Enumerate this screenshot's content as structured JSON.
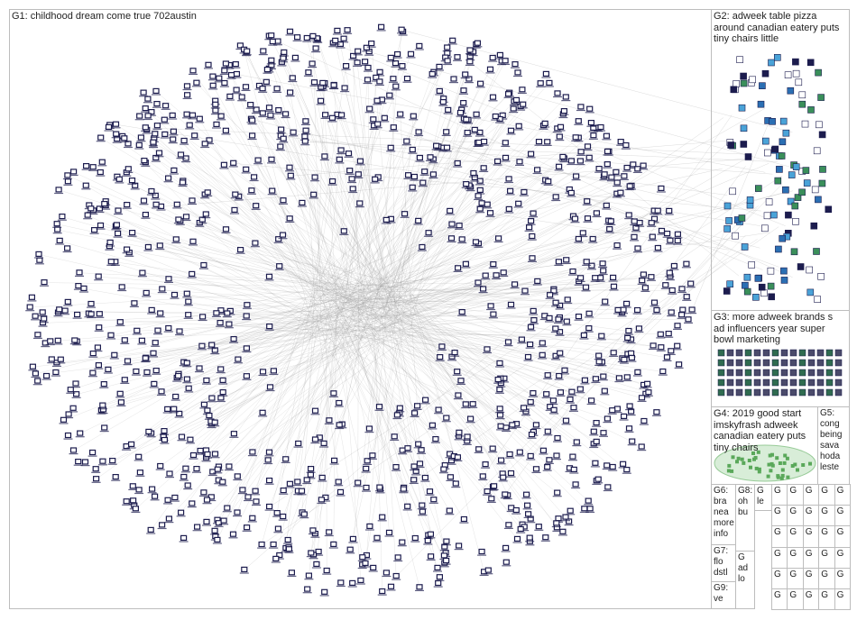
{
  "groups": [
    {
      "id": "G1",
      "label": "G1: childhood dream come true 702austin"
    },
    {
      "id": "G2",
      "label": "G2: adweek table pizza\naround canadian eatery puts\ntiny chairs little"
    },
    {
      "id": "G3",
      "label": "G3: more adweek brands s\nad influencers year super\nbowl marketing"
    },
    {
      "id": "G4",
      "label": "G4: 2019 good start\nimskyfrash adweek\ncanadian eatery puts\ntiny chairs"
    },
    {
      "id": "G5",
      "label": "G5:\ncong\nbeing\nsava\nhoda\nleste"
    },
    {
      "id": "G6",
      "label": "G6:\nbra\nnea\nmore\ninfo"
    },
    {
      "id": "G7",
      "label": "G7:\nflo\ndstl"
    },
    {
      "id": "G8",
      "label": "G8:\noh\nbu"
    },
    {
      "id": "G9",
      "label": "G9:\nve"
    },
    {
      "id": "G10",
      "label": "G\nle"
    },
    {
      "id": "G11",
      "label": "G\nad\nlo"
    }
  ],
  "colors": {
    "node_fill": "#1c1c4e",
    "node_box": "#ffffff",
    "edge": "#9a9a9a",
    "edge_red": "#e08080",
    "panel_border": "#bdbdbd",
    "g4_cluster": "#7fbf7f"
  }
}
